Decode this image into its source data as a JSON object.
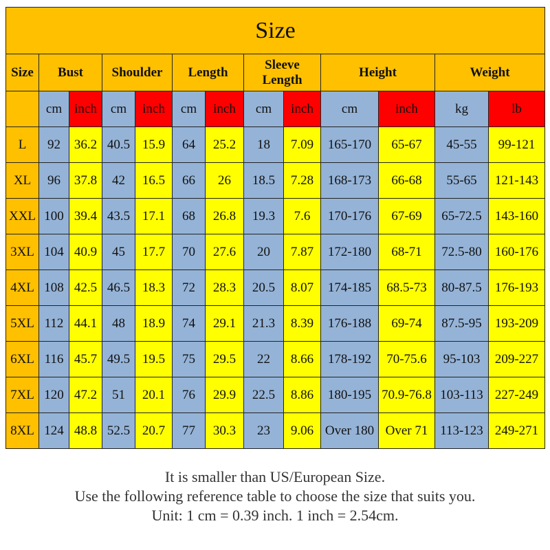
{
  "table": {
    "title": "Size",
    "headers": [
      "Size",
      "Bust",
      "Shoulder",
      "Length",
      "Sleeve Length",
      "Height",
      "Weight"
    ],
    "units": [
      "cm",
      "inch",
      "cm",
      "inch",
      "cm",
      "inch",
      "cm",
      "inch",
      "cm",
      "inch",
      "kg",
      "lb"
    ],
    "rows": [
      [
        "L",
        "92",
        "36.2",
        "40.5",
        "15.9",
        "64",
        "25.2",
        "18",
        "7.09",
        "165-170",
        "65-67",
        "45-55",
        "99-121"
      ],
      [
        "XL",
        "96",
        "37.8",
        "42",
        "16.5",
        "66",
        "26",
        "18.5",
        "7.28",
        "168-173",
        "66-68",
        "55-65",
        "121-143"
      ],
      [
        "XXL",
        "100",
        "39.4",
        "43.5",
        "17.1",
        "68",
        "26.8",
        "19.3",
        "7.6",
        "170-176",
        "67-69",
        "65-72.5",
        "143-160"
      ],
      [
        "3XL",
        "104",
        "40.9",
        "45",
        "17.7",
        "70",
        "27.6",
        "20",
        "7.87",
        "172-180",
        "68-71",
        "72.5-80",
        "160-176"
      ],
      [
        "4XL",
        "108",
        "42.5",
        "46.5",
        "18.3",
        "72",
        "28.3",
        "20.5",
        "8.07",
        "174-185",
        "68.5-73",
        "80-87.5",
        "176-193"
      ],
      [
        "5XL",
        "112",
        "44.1",
        "48",
        "18.9",
        "74",
        "29.1",
        "21.3",
        "8.39",
        "176-188",
        "69-74",
        "87.5-95",
        "193-209"
      ],
      [
        "6XL",
        "116",
        "45.7",
        "49.5",
        "19.5",
        "75",
        "29.5",
        "22",
        "8.66",
        "178-192",
        "70-75.6",
        "95-103",
        "209-227"
      ],
      [
        "7XL",
        "120",
        "47.2",
        "51",
        "20.1",
        "76",
        "29.9",
        "22.5",
        "8.86",
        "180-195",
        "70.9-76.8",
        "103-113",
        "227-249"
      ],
      [
        "8XL",
        "124",
        "48.8",
        "52.5",
        "20.7",
        "77",
        "30.3",
        "23",
        "9.06",
        "Over 180",
        "Over 71",
        "113-123",
        "249-271"
      ]
    ]
  },
  "notes": [
    "It is smaller than US/European Size.",
    "Use the following reference table to choose the size that suits you.",
    "Unit: 1 cm = 0.39 inch. 1 inch = 2.54cm."
  ]
}
